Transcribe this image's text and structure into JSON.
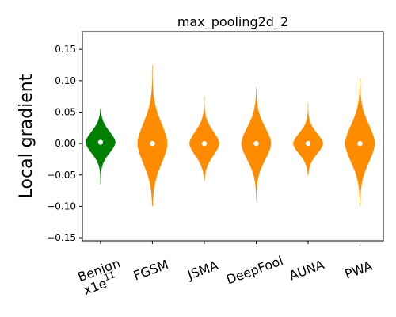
{
  "chart_data": {
    "type": "violin",
    "title": "max_pooling2d_2",
    "xlabel": "",
    "ylabel": "Local gradient",
    "scale_note": "x1e",
    "scale_exponent": "11",
    "ylim": [
      -0.155,
      0.178
    ],
    "yticks": [
      -0.15,
      -0.1,
      -0.05,
      0.0,
      0.05,
      0.1,
      0.15
    ],
    "ytick_labels": [
      "−0.15",
      "−0.10",
      "−0.05",
      "0.00",
      "0.05",
      "0.10",
      "0.15"
    ],
    "grid": false,
    "categories": [
      "Benign",
      "FGSM",
      "JSMA",
      "DeepFool",
      "AUNA",
      "PWA"
    ],
    "colors": [
      "#008000",
      "#ff8c00",
      "#ff8c00",
      "#ff8c00",
      "#ff8c00",
      "#ff8c00"
    ],
    "median_color": "#ffffff",
    "violins": [
      {
        "name": "Benign",
        "median": 0.002,
        "min": -0.065,
        "max": 0.055
      },
      {
        "name": "FGSM",
        "median": 0.0,
        "min": -0.1,
        "max": 0.125
      },
      {
        "name": "JSMA",
        "median": 0.0,
        "min": -0.06,
        "max": 0.075
      },
      {
        "name": "DeepFool",
        "median": 0.0,
        "min": -0.09,
        "max": 0.09
      },
      {
        "name": "AUNA",
        "median": 0.0,
        "min": -0.05,
        "max": 0.065
      },
      {
        "name": "PWA",
        "median": 0.0,
        "min": -0.1,
        "max": 0.105
      }
    ]
  }
}
